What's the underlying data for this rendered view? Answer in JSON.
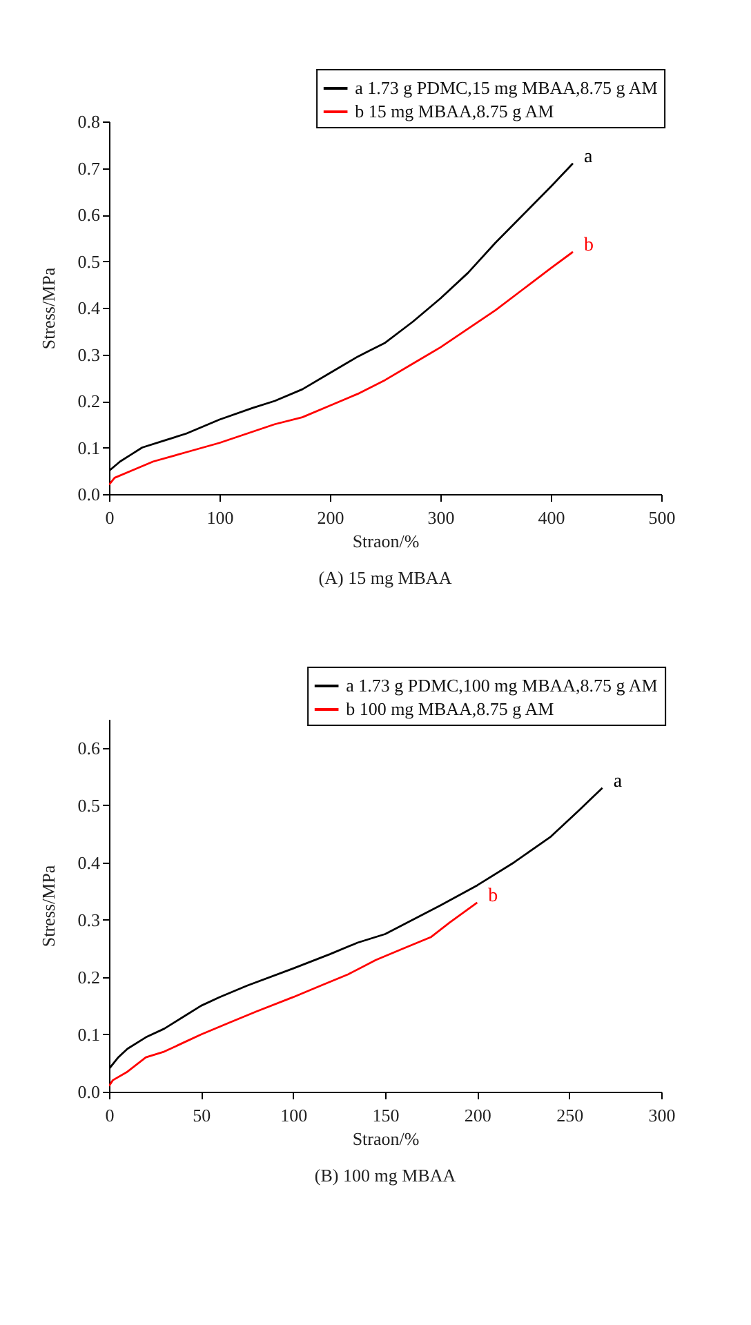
{
  "chart_data": [
    {
      "type": "line",
      "title": "(A) 15 mg MBAA",
      "xlabel": "Straon/%",
      "ylabel": "Stress/MPa",
      "xlim": [
        0,
        500
      ],
      "xticks": [
        0,
        100,
        200,
        300,
        400,
        500
      ],
      "ylim": [
        0,
        0.8
      ],
      "yticks": [
        {
          "value": 0,
          "label": "0.0"
        },
        0.1,
        0.2,
        0.3,
        0.4,
        0.5,
        0.6,
        0.7,
        0.8
      ],
      "legend": "top right",
      "grid": false,
      "marker": "none",
      "line_style": "solid",
      "series": [
        {
          "name": "a 1.73 g PDMC,15 mg MBAA,8.75 g AM",
          "color": "#000000",
          "x": [
            0,
            10,
            20,
            30,
            50,
            70,
            100,
            130,
            150,
            175,
            200,
            225,
            250,
            275,
            300,
            325,
            350,
            375,
            400,
            420
          ],
          "values": [
            0.05,
            0.07,
            0.085,
            0.1,
            0.115,
            0.13,
            0.16,
            0.185,
            0.2,
            0.225,
            0.26,
            0.295,
            0.325,
            0.37,
            0.42,
            0.475,
            0.54,
            0.6,
            0.66,
            0.71
          ]
        },
        {
          "name": "b 15 mg MBAA,8.75 g AM",
          "color": "#ff0000",
          "x": [
            0,
            5,
            20,
            40,
            70,
            100,
            125,
            150,
            175,
            200,
            225,
            250,
            275,
            300,
            325,
            350,
            375,
            400,
            420
          ],
          "values": [
            0.02,
            0.035,
            0.05,
            0.07,
            0.09,
            0.11,
            0.13,
            0.15,
            0.165,
            0.19,
            0.215,
            0.245,
            0.28,
            0.315,
            0.355,
            0.395,
            0.44,
            0.485,
            0.52
          ]
        }
      ],
      "annotations": [
        "a",
        "b"
      ]
    },
    {
      "type": "line",
      "title": "(B) 100 mg MBAA",
      "xlabel": "Straon/%",
      "ylabel": "Stress/MPa",
      "xlim": [
        0,
        300
      ],
      "xticks": [
        0,
        50,
        100,
        150,
        200,
        250,
        300
      ],
      "ylim": [
        0,
        0.65
      ],
      "yticks": [
        {
          "value": 0,
          "label": "0.0"
        },
        0.1,
        0.2,
        0.3,
        0.4,
        0.5,
        0.6
      ],
      "legend": "top right",
      "grid": false,
      "marker": "none",
      "line_style": "solid",
      "series": [
        {
          "name": "a 1.73 g PDMC,100 mg MBAA,8.75 g AM",
          "color": "#000000",
          "x": [
            0,
            5,
            10,
            20,
            30,
            40,
            50,
            60,
            75,
            100,
            120,
            135,
            150,
            165,
            180,
            200,
            220,
            240,
            255,
            268
          ],
          "values": [
            0.04,
            0.06,
            0.075,
            0.095,
            0.11,
            0.13,
            0.15,
            0.165,
            0.185,
            0.215,
            0.24,
            0.26,
            0.275,
            0.3,
            0.325,
            0.36,
            0.4,
            0.445,
            0.49,
            0.53
          ]
        },
        {
          "name": "b 100 mg MBAA,8.75 g AM",
          "color": "#ff0000",
          "x": [
            0,
            2,
            10,
            20,
            30,
            40,
            50,
            65,
            80,
            100,
            115,
            130,
            145,
            160,
            175,
            185,
            200
          ],
          "values": [
            0.01,
            0.02,
            0.035,
            0.06,
            0.07,
            0.085,
            0.1,
            0.12,
            0.14,
            0.165,
            0.185,
            0.205,
            0.23,
            0.25,
            0.27,
            0.295,
            0.33
          ]
        }
      ],
      "annotations": [
        "a",
        "b"
      ]
    }
  ]
}
